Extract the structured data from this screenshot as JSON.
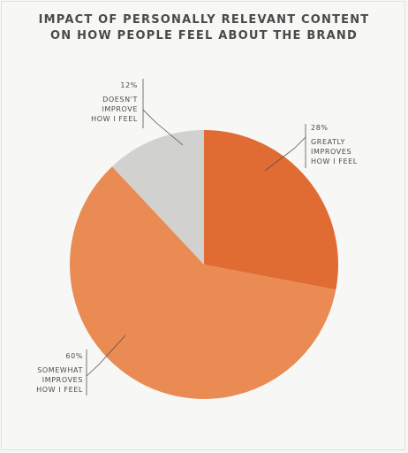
{
  "chart_data": {
    "type": "pie",
    "title_lines": [
      "IMPACT OF PERSONALLY RELEVANT CONTENT",
      "ON HOW PEOPLE FEEL ABOUT THE BRAND"
    ],
    "slices": [
      {
        "value": 28,
        "label_value": "28%",
        "label_lines": [
          "GREATLY",
          "IMPROVES",
          "HOW I FEEL"
        ],
        "color": "#e06c33"
      },
      {
        "value": 60,
        "label_value": "60%",
        "label_lines": [
          "SOMEWHAT",
          "IMPROVES",
          "HOW I FEEL"
        ],
        "color": "#e98b53"
      },
      {
        "value": 12,
        "label_value": "12%",
        "label_lines": [
          "DOESN'T",
          "IMPROVE",
          "HOW I FEEL"
        ],
        "color": "#d1d1cf"
      }
    ]
  }
}
